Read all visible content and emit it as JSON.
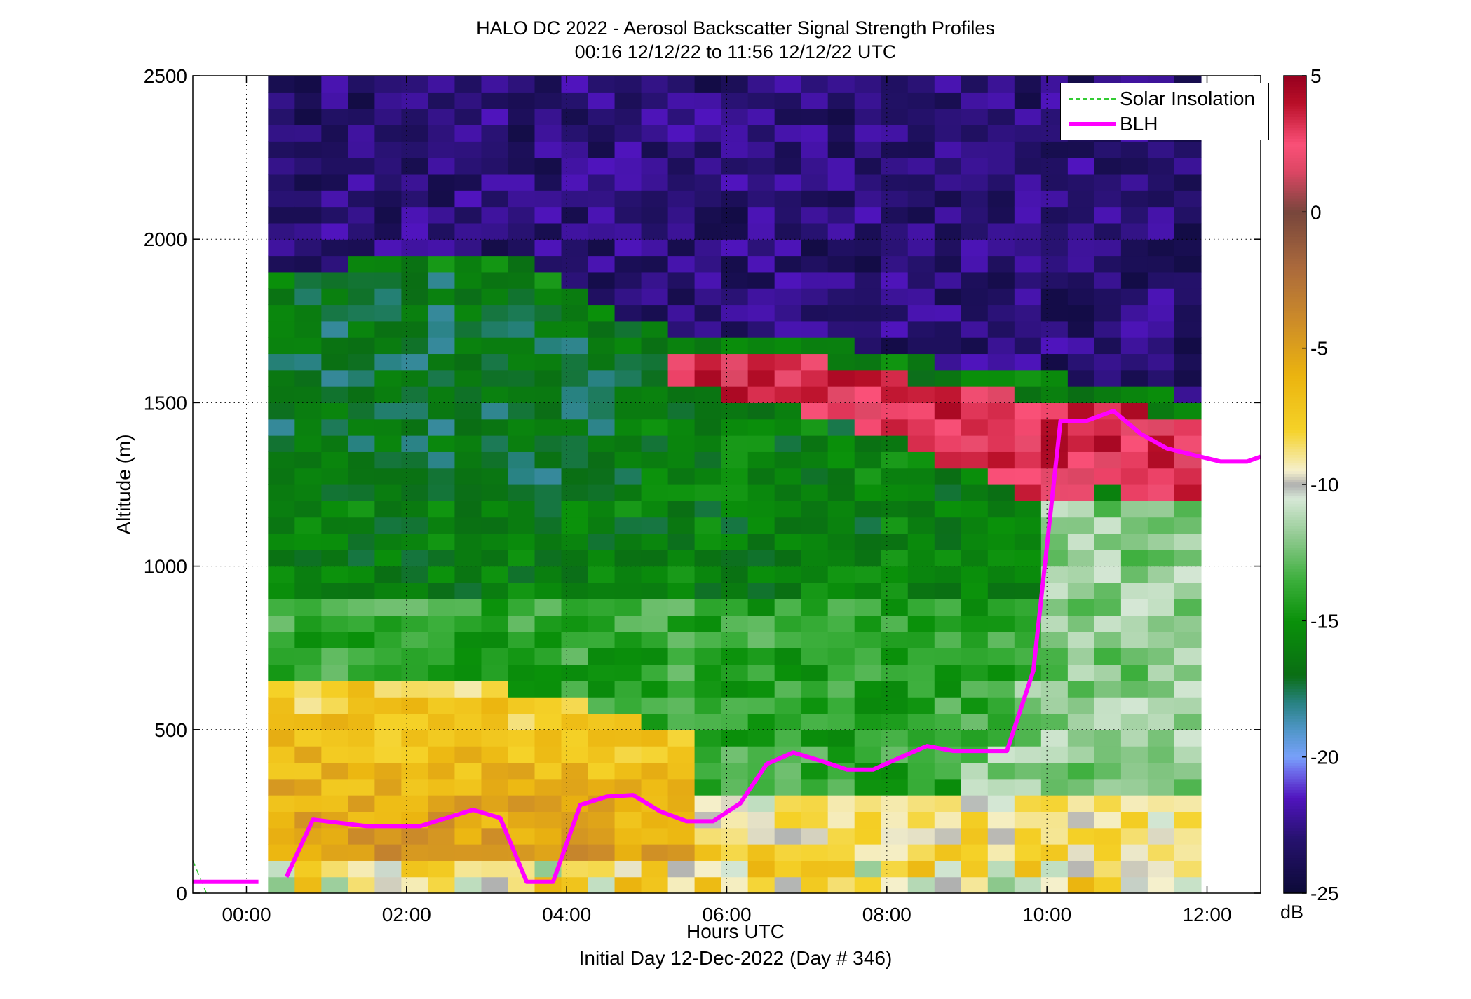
{
  "chart_data": {
    "type": "heatmap",
    "title": "HALO DC 2022 - Aerosol Backscatter Signal Strength Profiles",
    "subtitle": "00:16 12/12/22 to 11:56 12/12/22  UTC",
    "xlabel": "Hours UTC",
    "xlabel2": "Initial Day 12-Dec-2022 (Day # 346)",
    "ylabel": "Altitude (m)",
    "xlim": [
      -0.67,
      12.67
    ],
    "ylim": [
      0,
      2500
    ],
    "x_ticks": [
      0,
      2,
      4,
      6,
      8,
      10,
      12
    ],
    "x_tick_labels": [
      "00:00",
      "02:00",
      "04:00",
      "06:00",
      "08:00",
      "10:00",
      "12:00"
    ],
    "y_ticks": [
      0,
      500,
      1000,
      1500,
      2000,
      2500
    ],
    "y_tick_labels": [
      "0",
      "500",
      "1000",
      "1500",
      "2000",
      "2500"
    ],
    "grid": true,
    "legend_position": "top-right",
    "colorbar": {
      "label": "dB",
      "range": [
        -25,
        5
      ],
      "ticks": [
        5,
        0,
        -5,
        -10,
        -15,
        -20,
        -25
      ],
      "tick_labels": [
        "5",
        "0",
        "-5",
        "-10",
        "-15",
        "-20",
        "-25"
      ]
    },
    "heatmap": {
      "x_start_hours": 0.27,
      "x_end_hours": 11.93,
      "time_bin_hours": 0.333,
      "altitude_start_m": 0,
      "altitude_top_m": 2500,
      "altitude_bin_m": 50,
      "approx_db_profile_by_altitude": [
        {
          "altitude_range_m": [
            0,
            100
          ],
          "db": -9
        },
        {
          "altitude_range_m": [
            100,
            300
          ],
          "db": -4
        },
        {
          "altitude_range_m": [
            300,
            700
          ],
          "db": -7
        },
        {
          "altitude_range_m": [
            700,
            1700
          ],
          "db": -16
        },
        {
          "altitude_range_m": [
            1300,
            1700
          ],
          "db": 3
        },
        {
          "altitude_range_m": [
            1700,
            2500
          ],
          "db": -23
        }
      ]
    },
    "series": [
      {
        "name": "Solar Insolation",
        "style": "dashed",
        "color": "#33cc33",
        "x": [
          -0.67,
          -0.5
        ],
        "y": [
          100,
          0
        ]
      },
      {
        "name": "BLH",
        "style": "solid",
        "color": "#ff00ff",
        "x": [
          -0.67,
          0.15,
          0.5,
          0.83,
          1.5,
          2.17,
          2.83,
          3.17,
          3.5,
          3.83,
          4.17,
          4.5,
          4.83,
          5.17,
          5.5,
          5.83,
          6.17,
          6.5,
          6.83,
          7.17,
          7.5,
          7.83,
          8.17,
          8.5,
          8.83,
          9.17,
          9.5,
          9.83,
          10.17,
          10.5,
          10.83,
          11.17,
          11.5,
          11.83,
          12.17,
          12.5,
          12.67
        ],
        "y": [
          35,
          35,
          50,
          225,
          205,
          205,
          255,
          230,
          35,
          35,
          270,
          295,
          300,
          250,
          220,
          220,
          275,
          395,
          430,
          405,
          378,
          378,
          415,
          450,
          435,
          435,
          435,
          680,
          1445,
          1445,
          1475,
          1405,
          1360,
          1340,
          1320,
          1320,
          1335
        ]
      }
    ]
  }
}
